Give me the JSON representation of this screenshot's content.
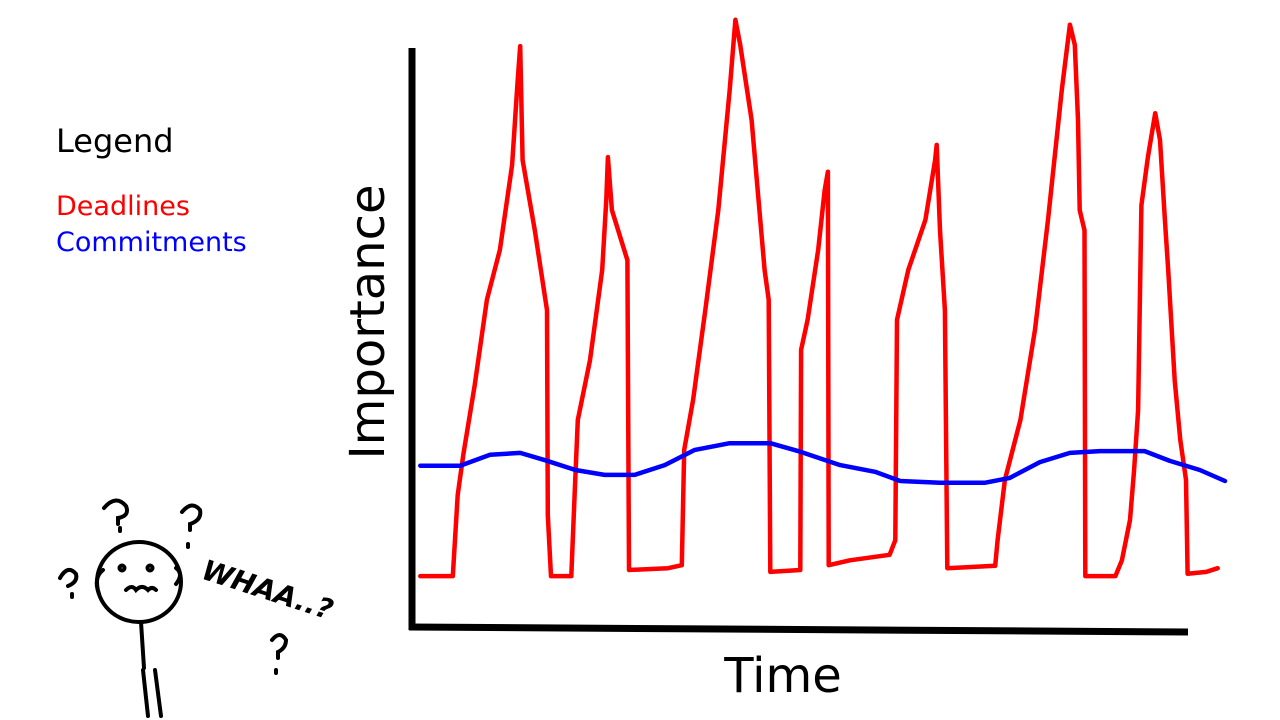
{
  "chart_data": {
    "type": "line",
    "x_label": "Time",
    "y_label": "Importance",
    "legend_title": "Legend",
    "legend": "top-left",
    "annotation": "WHAA..?",
    "xlim": [
      0,
      100
    ],
    "ylim": [
      0,
      100
    ],
    "series": [
      {
        "name": "Deadlines",
        "color": "#ff0000",
        "x": [
          0.9,
          4.9,
          5.5,
          6.2,
          7.6,
          9.1,
          10.7,
          12.2,
          12.9,
          13.2,
          13.5,
          15.0,
          16.5,
          16.6,
          17.0,
          19.5,
          19.9,
          20.3,
          21.8,
          23.3,
          23.8,
          24.0,
          24.5,
          26.4,
          26.6,
          31.4,
          33.1,
          33.4,
          34.5,
          36.0,
          37.6,
          39.0,
          39.7,
          40.3,
          41.7,
          43.3,
          43.8,
          44.0,
          47.7,
          47.8,
          48.6,
          49.9,
          50.7,
          51.1,
          51.2,
          53.8,
          58.7,
          59.4,
          59.6,
          61.0,
          63.1,
          64.3,
          64.5,
          64.9,
          65.5,
          65.8,
          71.7,
          72.0,
          72.9,
          74.8,
          76.6,
          78.2,
          79.9,
          80.9,
          81.5,
          81.9,
          82.1,
          82.7,
          82.8,
          86.5,
          87.3,
          88.3,
          88.8,
          89.3,
          89.7,
          90.5,
          91.4,
          92.0,
          92.6,
          93.0,
          93.8,
          94.5,
          95.2,
          95.4,
          97.7,
          99.1
        ],
        "values": [
          8.5,
          8.5,
          21.8,
          28.4,
          39.8,
          53.8,
          62.0,
          75.9,
          89.8,
          95.4,
          76.7,
          65.2,
          52.1,
          18.5,
          8.5,
          8.5,
          21.8,
          34.1,
          43.9,
          58.7,
          70.2,
          77.2,
          68.5,
          60.3,
          9.5,
          9.8,
          10.3,
          29.2,
          37.4,
          52.1,
          68.5,
          88.2,
          99.7,
          95.6,
          83.3,
          58.7,
          53.8,
          9.2,
          9.5,
          45.6,
          50.5,
          62.0,
          71.8,
          74.8,
          10.3,
          11.1,
          12.0,
          14.4,
          50.5,
          58.7,
          66.9,
          76.7,
          79.2,
          65.2,
          52.1,
          9.8,
          10.2,
          14.4,
          24.3,
          34.1,
          48.9,
          66.9,
          88.2,
          98.9,
          95.6,
          83.3,
          68.5,
          65.2,
          8.5,
          8.5,
          11.1,
          17.7,
          25.9,
          35.7,
          69.3,
          77.2,
          84.4,
          80.0,
          66.9,
          58.7,
          40.6,
          30.8,
          24.3,
          8.9,
          9.2,
          9.8
        ]
      },
      {
        "name": "Commitments",
        "color": "#0000ff",
        "x": [
          0.9,
          5.8,
          9.5,
          13.2,
          16.3,
          20.0,
          23.6,
          27.3,
          31.0,
          34.7,
          39.0,
          44.0,
          47.7,
          52.6,
          56.9,
          60.0,
          64.9,
          70.4,
          73.5,
          77.2,
          80.9,
          84.6,
          90.1,
          93.2,
          96.9,
          100
        ],
        "values": [
          26.6,
          26.6,
          28.4,
          28.7,
          27.5,
          25.9,
          25.1,
          25.1,
          26.7,
          29.2,
          30.3,
          30.3,
          28.9,
          26.7,
          25.6,
          24.1,
          23.8,
          23.8,
          24.6,
          27.2,
          28.7,
          29.0,
          29.0,
          27.4,
          25.9,
          24.1
        ]
      }
    ]
  }
}
